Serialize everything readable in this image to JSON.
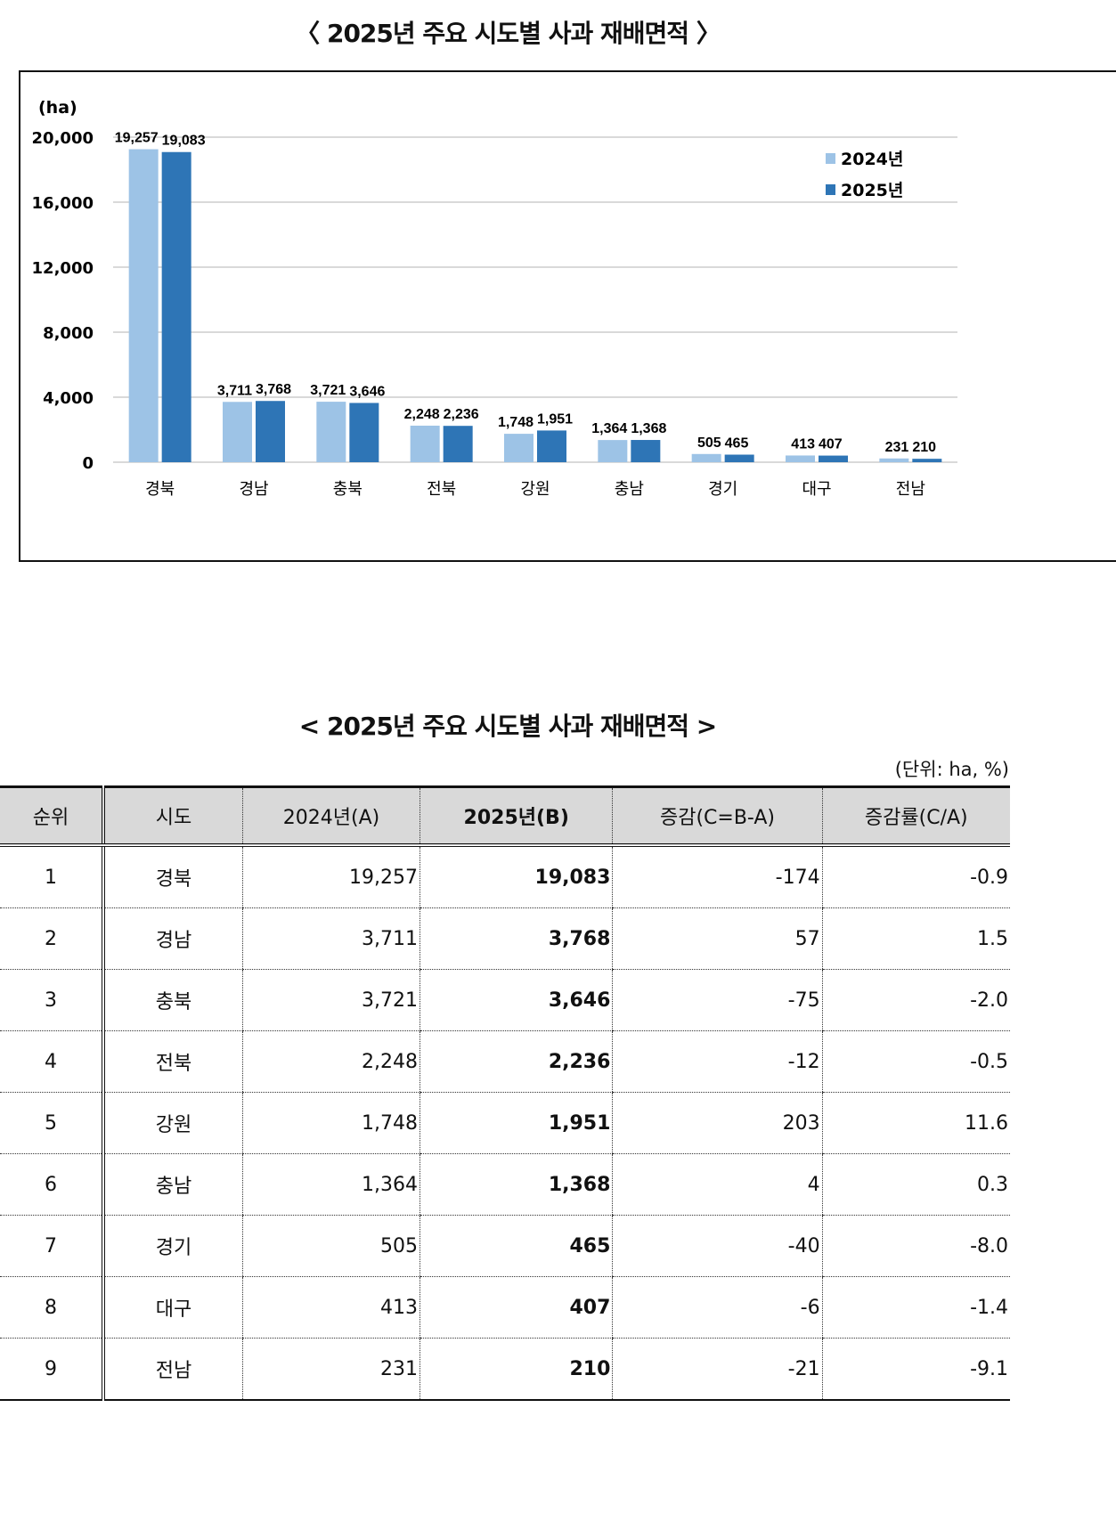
{
  "chart_data": {
    "type": "bar",
    "title": "〈 2025년 주요 시도별 사과 재배면적 〉",
    "ylabel": "(ha)",
    "ylim": [
      0,
      20000
    ],
    "yticks": [
      "0",
      "4,000",
      "8,000",
      "12,000",
      "16,000",
      "20,000"
    ],
    "ytick_values": [
      0,
      4000,
      8000,
      12000,
      16000,
      20000
    ],
    "grid": true,
    "legend": "top-right",
    "categories": [
      "경북",
      "경남",
      "충북",
      "전북",
      "강원",
      "충남",
      "경기",
      "대구",
      "전남"
    ],
    "series": [
      {
        "name": "2024년",
        "color": "#9dc3e6",
        "values": [
          19257,
          3711,
          3721,
          2248,
          1748,
          1364,
          505,
          413,
          231
        ],
        "labels": [
          "19,257",
          "3,711",
          "3,721",
          "2,248",
          "1,748",
          "1,364",
          "505",
          "413",
          "231"
        ]
      },
      {
        "name": "2025년",
        "color": "#2e75b6",
        "values": [
          19083,
          3768,
          3646,
          2236,
          1951,
          1368,
          465,
          407,
          210
        ],
        "labels": [
          "19,083",
          "3,768",
          "3,646",
          "2,236",
          "1,951",
          "1,368",
          "465",
          "407",
          "210"
        ]
      }
    ]
  },
  "table": {
    "title": "< 2025년 주요 시도별 사과 재배면적 >",
    "unit": "(단위: ha, %)",
    "headers": [
      "순위",
      "시도",
      "2024년(A)",
      "2025년(B)",
      "증감(C=B-A)",
      "증감률(C/A)"
    ],
    "rows": [
      [
        "1",
        "경북",
        "19,257",
        "19,083",
        "-174",
        "-0.9"
      ],
      [
        "2",
        "경남",
        "3,711",
        "3,768",
        "57",
        "1.5"
      ],
      [
        "3",
        "충북",
        "3,721",
        "3,646",
        "-75",
        "-2.0"
      ],
      [
        "4",
        "전북",
        "2,248",
        "2,236",
        "-12",
        "-0.5"
      ],
      [
        "5",
        "강원",
        "1,748",
        "1,951",
        "203",
        "11.6"
      ],
      [
        "6",
        "충남",
        "1,364",
        "1,368",
        "4",
        "0.3"
      ],
      [
        "7",
        "경기",
        "505",
        "465",
        "-40",
        "-8.0"
      ],
      [
        "8",
        "대구",
        "413",
        "407",
        "-6",
        "-1.4"
      ],
      [
        "9",
        "전남",
        "231",
        "210",
        "-21",
        "-9.1"
      ]
    ]
  }
}
